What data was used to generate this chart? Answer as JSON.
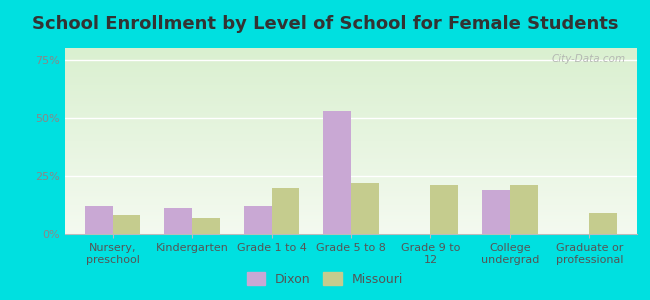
{
  "title": "School Enrollment by Level of School for Female Students",
  "categories": [
    "Nursery,\npreschool",
    "Kindergarten",
    "Grade 1 to 4",
    "Grade 5 to 8",
    "Grade 9 to\n12",
    "College\nundergrad",
    "Graduate or\nprofessional"
  ],
  "dixon": [
    12,
    11,
    12,
    53,
    0,
    19,
    0
  ],
  "missouri": [
    8,
    7,
    20,
    22,
    21,
    21,
    9
  ],
  "dixon_color": "#c9a8d4",
  "missouri_color": "#c5cc8e",
  "yticks": [
    0,
    25,
    50,
    75
  ],
  "ylim": [
    0,
    80
  ],
  "background_color": "#00e0e0",
  "bar_width": 0.35,
  "title_fontsize": 13,
  "tick_fontsize": 8,
  "legend_fontsize": 9,
  "watermark": "City-Data.com"
}
